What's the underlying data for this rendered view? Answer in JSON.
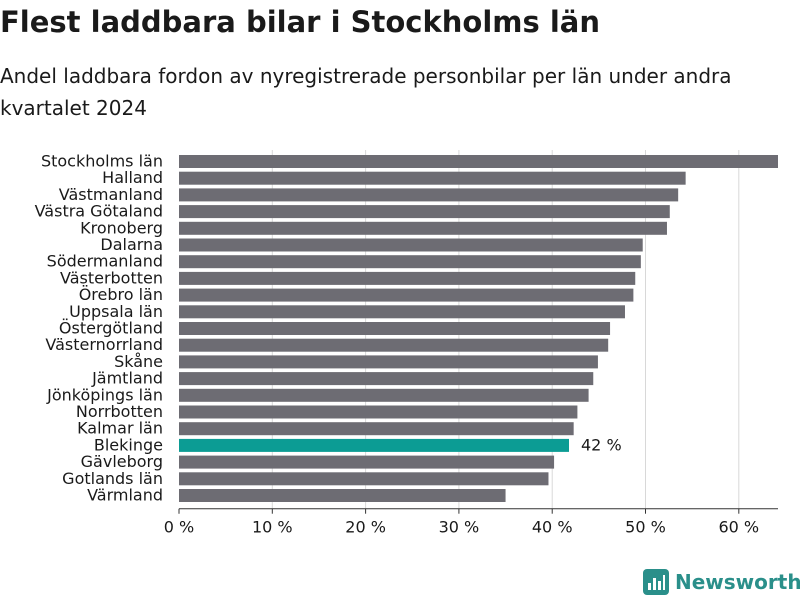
{
  "colors": {
    "bar": "#6d6c73",
    "highlight": "#0c9c94",
    "grid": "#d8d8d8",
    "axis": "#333333",
    "text": "#1a1a1a",
    "brand": "#2a8f8a"
  },
  "chart_data": {
    "type": "bar",
    "orientation": "horizontal",
    "title": "Flest laddbara bilar i Stockholms län",
    "subtitle": "Andel laddbara fordon av nyregistrerade personbilar per län under andra kvartalet 2024",
    "categories": [
      "Stockholms län",
      "Halland",
      "Västmanland",
      "Västra Götaland",
      "Kronoberg",
      "Dalarna",
      "Södermanland",
      "Västerbotten",
      "Örebro län",
      "Uppsala län",
      "Östergötland",
      "Västernorrland",
      "Skåne",
      "Jämtland",
      "Jönköpings län",
      "Norrbotten",
      "Kalmar län",
      "Blekinge",
      "Gävleborg",
      "Gotlands län",
      "Värmland"
    ],
    "values": [
      64.2,
      54.3,
      53.5,
      52.6,
      52.3,
      49.7,
      49.5,
      48.9,
      48.7,
      47.8,
      46.2,
      46.0,
      44.9,
      44.4,
      43.9,
      42.7,
      42.3,
      41.8,
      40.2,
      39.6,
      35.0
    ],
    "highlight": {
      "category": "Blekinge",
      "label": "42 %"
    },
    "xlim": [
      0,
      64.2
    ],
    "xticks": [
      0,
      10,
      20,
      30,
      40,
      50,
      60
    ],
    "xtick_labels": [
      "0 %",
      "10 %",
      "20 %",
      "30 %",
      "40 %",
      "50 %",
      "60 %"
    ],
    "grid": true
  },
  "brand": {
    "name": "Newsworthy",
    "icon": "bar-chart-logo-icon"
  }
}
